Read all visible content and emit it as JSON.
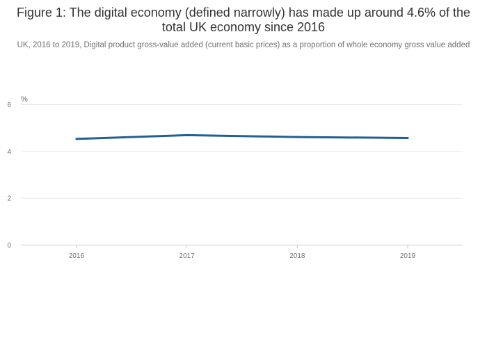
{
  "chart_data": {
    "type": "line",
    "title": "Figure 1: The digital economy (defined narrowly) has made up around 4.6% of the total UK economy since 2016",
    "subtitle": "UK, 2016 to 2019, Digital product gross-value added (current basic prices) as a proportion of whole economy gross value added",
    "ylabel": "%",
    "xlabel": "",
    "categories": [
      "2016",
      "2017",
      "2018",
      "2019"
    ],
    "series": [
      {
        "values": [
          4.52,
          4.68,
          4.6,
          4.56
        ],
        "color": "#206095"
      }
    ],
    "ylim": [
      0,
      6
    ],
    "yticks": [
      0,
      2,
      4,
      6
    ],
    "grid": true,
    "legend": "none"
  }
}
